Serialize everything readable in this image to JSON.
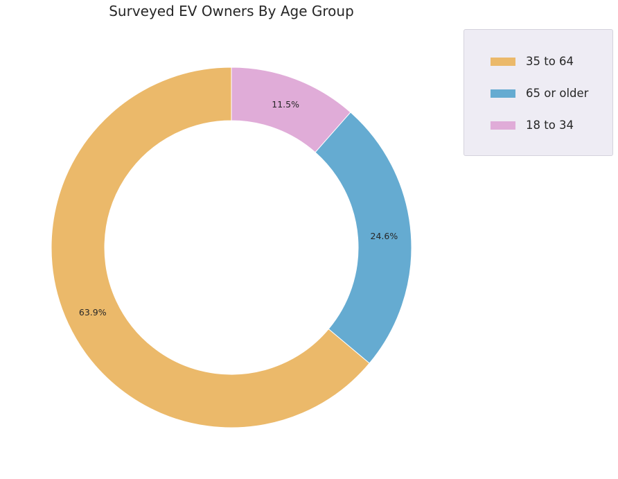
{
  "chart_data": {
    "type": "pie",
    "title": "Surveyed EV Owners By Age Group",
    "donut": true,
    "start_angle_deg": 90,
    "direction": "counterclockwise",
    "categories": [
      "35 to 64",
      "65 or older",
      "18 to 34"
    ],
    "values": [
      63.9,
      24.6,
      11.5
    ],
    "data_labels": [
      "63.9%",
      "24.6%",
      "11.5%"
    ],
    "colors": [
      "#ebb96a",
      "#65abd1",
      "#e0acd8"
    ],
    "legend": {
      "placement": "upper-right outside",
      "entries": [
        "35 to 64",
        "65 or older",
        "18 to 34"
      ]
    }
  }
}
